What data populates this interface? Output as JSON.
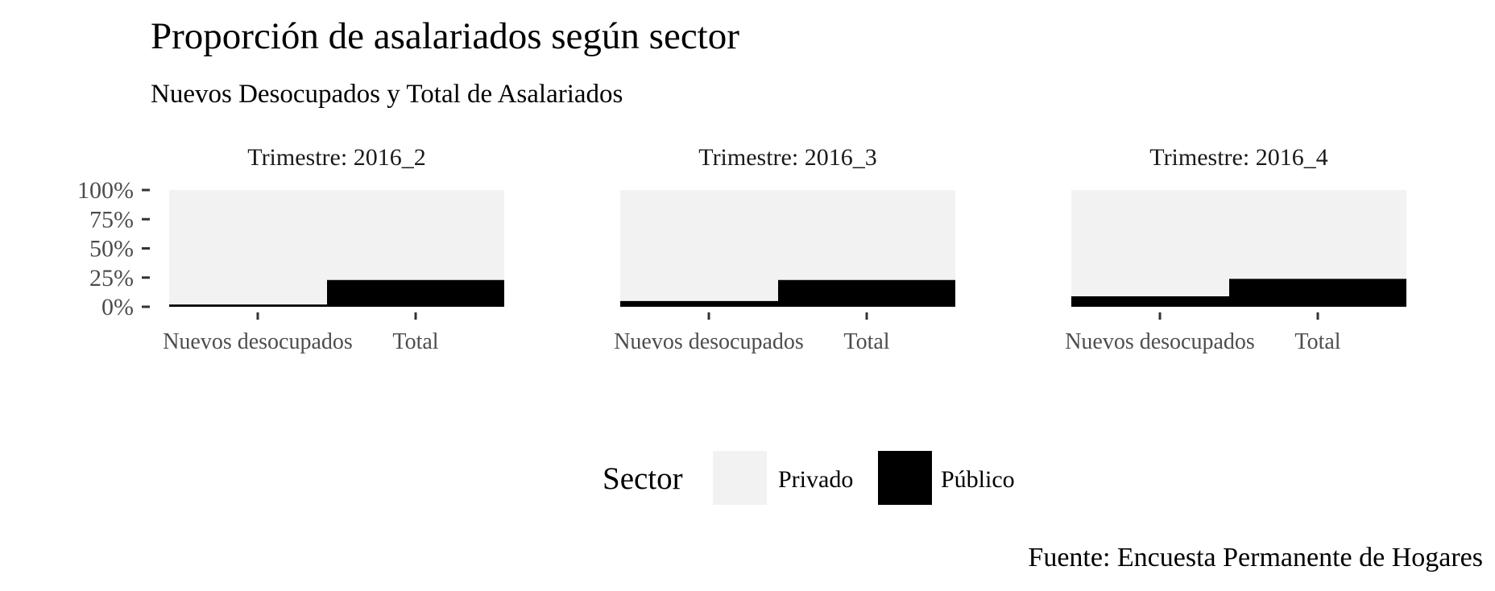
{
  "chart_data": {
    "type": "bar",
    "stacked": "percent",
    "title": "Proporción de asalariados según sector",
    "subtitle": "Nuevos Desocupados y Total de Asalariados",
    "caption": "Fuente: Encuesta Permanente de Hogares",
    "xlabel": "",
    "ylabel": "",
    "ylim": [
      0,
      100
    ],
    "y_ticks": [
      "0%",
      "25%",
      "50%",
      "75%",
      "100%"
    ],
    "y_tick_values": [
      0,
      25,
      50,
      75,
      100
    ],
    "grid": false,
    "legend": {
      "title": "Sector",
      "position": "bottom",
      "entries": [
        {
          "name": "Privado",
          "color": "#f2f2f2"
        },
        {
          "name": "Público",
          "color": "#000000"
        }
      ]
    },
    "categories": [
      "Nuevos desocupados",
      "Total"
    ],
    "facets": [
      {
        "label": "Trimestre: 2016_2",
        "series": [
          {
            "name": "Privado",
            "values": [
              98,
              77
            ]
          },
          {
            "name": "Público",
            "values": [
              2,
              23
            ]
          }
        ]
      },
      {
        "label": "Trimestre: 2016_3",
        "series": [
          {
            "name": "Privado",
            "values": [
              95,
              77
            ]
          },
          {
            "name": "Público",
            "values": [
              5,
              23
            ]
          }
        ]
      },
      {
        "label": "Trimestre: 2016_4",
        "series": [
          {
            "name": "Privado",
            "values": [
              91,
              76
            ]
          },
          {
            "name": "Público",
            "values": [
              9,
              24
            ]
          }
        ]
      }
    ]
  }
}
